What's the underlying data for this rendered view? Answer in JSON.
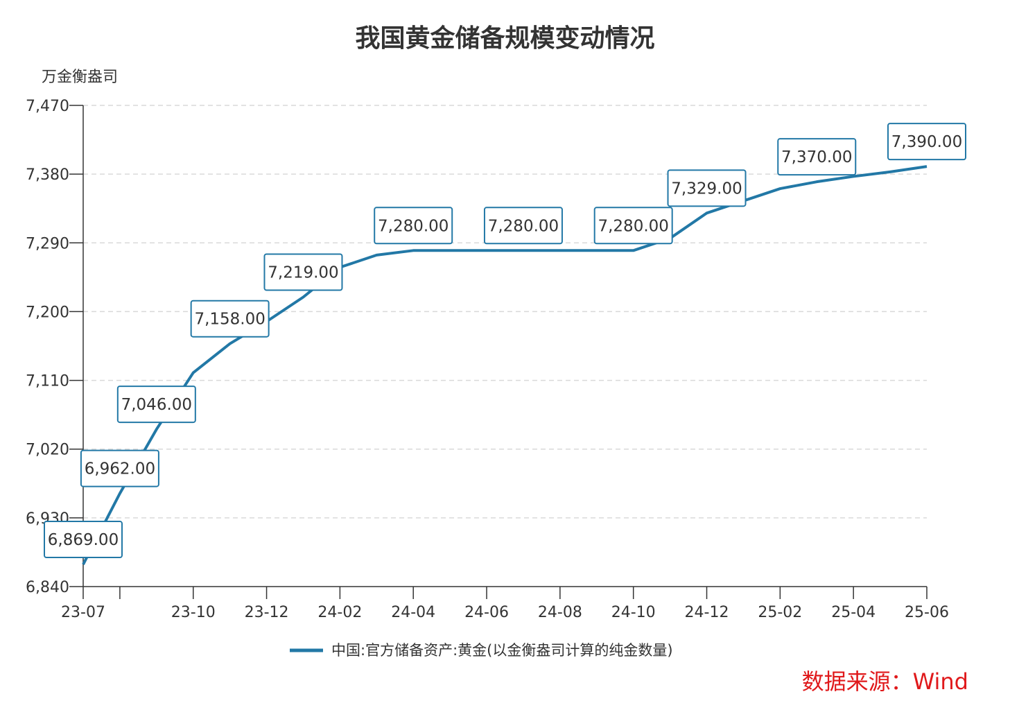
{
  "chart_data": {
    "type": "line",
    "title": "我国黄金储备规模变动情况",
    "ylabel": "万金衡盎司",
    "ylim": [
      6840,
      7470
    ],
    "yticks": [
      "6,840",
      "6,930",
      "7,020",
      "7,110",
      "7,200",
      "7,290",
      "7,380",
      "7,470"
    ],
    "ytick_values": [
      6840,
      6930,
      7020,
      7110,
      7200,
      7290,
      7380,
      7470
    ],
    "x": [
      "23-07",
      "23-08",
      "23-09",
      "23-10",
      "23-11",
      "23-12",
      "24-01",
      "24-02",
      "24-03",
      "24-04",
      "24-05",
      "24-06",
      "24-07",
      "24-08",
      "24-09",
      "24-10",
      "24-11",
      "24-12",
      "25-01",
      "25-02",
      "25-03",
      "25-04",
      "25-05",
      "25-06"
    ],
    "xtick_labels": [
      "23-07",
      "",
      "23-10",
      "23-12",
      "24-02",
      "24-04",
      "24-06",
      "24-08",
      "24-10",
      "24-12",
      "25-02",
      "25-04",
      "25-06"
    ],
    "grid": true,
    "legend_position": "bottom",
    "series": [
      {
        "name": "中国:官方储备资产:黄金(以金衡盎司计算的纯金数量)",
        "color": "#2278a6",
        "values": [
          6869,
          6962,
          7046,
          7120,
          7158,
          7187,
          7219,
          7258,
          7274,
          7280,
          7280,
          7280,
          7280,
          7280,
          7280,
          7280,
          7296,
          7329,
          7345,
          7361,
          7370,
          7377,
          7383,
          7390
        ]
      }
    ],
    "data_labels": [
      {
        "x": "23-07",
        "text": "6,869.00"
      },
      {
        "x": "23-08",
        "text": "6,962.00"
      },
      {
        "x": "23-09",
        "text": "7,046.00"
      },
      {
        "x": "23-11",
        "text": "7,158.00"
      },
      {
        "x": "24-01",
        "text": "7,219.00"
      },
      {
        "x": "24-04",
        "text": "7,280.00"
      },
      {
        "x": "24-07",
        "text": "7,280.00"
      },
      {
        "x": "24-10",
        "text": "7,280.00"
      },
      {
        "x": "24-12",
        "text": "7,329.00"
      },
      {
        "x": "25-03",
        "text": "7,370.00"
      },
      {
        "x": "25-06",
        "text": "7,390.00"
      }
    ]
  },
  "source": "数据来源：Wind"
}
